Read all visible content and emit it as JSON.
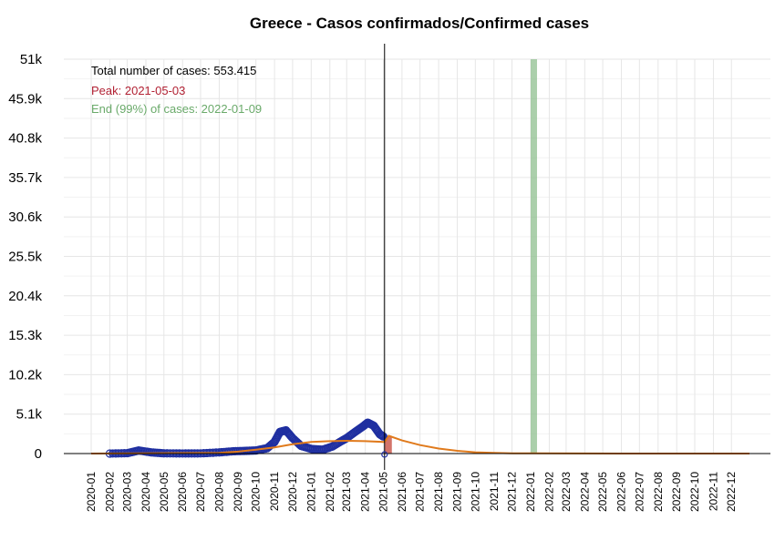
{
  "chart_data": {
    "type": "line",
    "title": "Greece - Casos confirmados/Confirmed cases",
    "xlabel": "",
    "ylabel": "",
    "x_range": [
      "2020-01-01",
      "2022-12-31"
    ],
    "ylim": [
      0,
      51000
    ],
    "y_ticks": [
      0,
      5100,
      10200,
      15300,
      20400,
      25500,
      30600,
      35700,
      40800,
      45900,
      51000
    ],
    "y_tick_labels": [
      "0",
      "5.1k",
      "10.2k",
      "15.3k",
      "20.4k",
      "25.5k",
      "30.6k",
      "35.7k",
      "40.8k",
      "45.9k",
      "51k"
    ],
    "x_tick_labels": [
      "2020-01",
      "2020-02",
      "2020-03",
      "2020-04",
      "2020-05",
      "2020-06",
      "2020-07",
      "2020-08",
      "2020-09",
      "2020-10",
      "2020-11",
      "2020-12",
      "2021-01",
      "2021-02",
      "2021-03",
      "2021-04",
      "2021-05",
      "2021-06",
      "2021-07",
      "2021-08",
      "2021-09",
      "2021-10",
      "2021-11",
      "2021-12",
      "2022-01",
      "2022-02",
      "2022-03",
      "2022-04",
      "2022-05",
      "2022-06",
      "2022-07",
      "2022-08",
      "2022-09",
      "2022-10",
      "2022-11",
      "2022-12"
    ],
    "grid": true,
    "annotations": {
      "total": "Total number of cases: 553.415",
      "peak": "Peak: 2021-05-03",
      "end": "End (99%) of cases: 2022-01-09"
    },
    "colors": {
      "observed": "#1f2fa0",
      "fit": "#e07a1c",
      "peak": "#c0392b",
      "end": "#8fbf8f",
      "grid": "#e6e6e6",
      "annotation_total": "#000000",
      "annotation_peak": "#b22234",
      "annotation_end": "#6aaa6a"
    },
    "observed_series": [
      {
        "date": "2020-02-01",
        "value": 0
      },
      {
        "date": "2020-03-01",
        "value": 50
      },
      {
        "date": "2020-03-20",
        "value": 400
      },
      {
        "date": "2020-04-10",
        "value": 150
      },
      {
        "date": "2020-05-01",
        "value": 30
      },
      {
        "date": "2020-06-01",
        "value": 10
      },
      {
        "date": "2020-07-01",
        "value": 20
      },
      {
        "date": "2020-08-01",
        "value": 150
      },
      {
        "date": "2020-08-25",
        "value": 300
      },
      {
        "date": "2020-09-15",
        "value": 350
      },
      {
        "date": "2020-10-01",
        "value": 400
      },
      {
        "date": "2020-10-20",
        "value": 700
      },
      {
        "date": "2020-11-01",
        "value": 1500
      },
      {
        "date": "2020-11-10",
        "value": 2800
      },
      {
        "date": "2020-11-20",
        "value": 3000
      },
      {
        "date": "2020-12-01",
        "value": 2000
      },
      {
        "date": "2020-12-15",
        "value": 1000
      },
      {
        "date": "2021-01-01",
        "value": 600
      },
      {
        "date": "2021-01-20",
        "value": 500
      },
      {
        "date": "2021-02-05",
        "value": 900
      },
      {
        "date": "2021-02-20",
        "value": 1600
      },
      {
        "date": "2021-03-01",
        "value": 2000
      },
      {
        "date": "2021-03-15",
        "value": 2800
      },
      {
        "date": "2021-03-28",
        "value": 3500
      },
      {
        "date": "2021-04-05",
        "value": 4000
      },
      {
        "date": "2021-04-15",
        "value": 3600
      },
      {
        "date": "2021-04-25",
        "value": 2500
      },
      {
        "date": "2021-05-01",
        "value": 2200
      }
    ],
    "fit_series": [
      {
        "date": "2020-01-01",
        "value": 0
      },
      {
        "date": "2020-08-01",
        "value": 100
      },
      {
        "date": "2020-09-01",
        "value": 250
      },
      {
        "date": "2020-10-01",
        "value": 500
      },
      {
        "date": "2020-11-01",
        "value": 800
      },
      {
        "date": "2020-12-01",
        "value": 1200
      },
      {
        "date": "2021-01-01",
        "value": 1500
      },
      {
        "date": "2021-02-01",
        "value": 1600
      },
      {
        "date": "2021-03-01",
        "value": 1650
      },
      {
        "date": "2021-04-01",
        "value": 1600
      },
      {
        "date": "2021-05-03",
        "value": 1500
      },
      {
        "date": "2021-05-10",
        "value": 2300
      },
      {
        "date": "2021-06-01",
        "value": 1700
      },
      {
        "date": "2021-07-01",
        "value": 1100
      },
      {
        "date": "2021-08-01",
        "value": 650
      },
      {
        "date": "2021-09-01",
        "value": 350
      },
      {
        "date": "2021-10-01",
        "value": 170
      },
      {
        "date": "2021-11-01",
        "value": 80
      },
      {
        "date": "2021-12-01",
        "value": 40
      },
      {
        "date": "2022-01-09",
        "value": 20
      },
      {
        "date": "2022-06-01",
        "value": 5
      },
      {
        "date": "2022-12-31",
        "value": 0
      }
    ],
    "current_date": "2021-05-03",
    "peak_band": [
      "2021-05-03",
      "2021-05-15"
    ],
    "end_band": [
      "2022-01-01",
      "2022-01-09"
    ]
  }
}
